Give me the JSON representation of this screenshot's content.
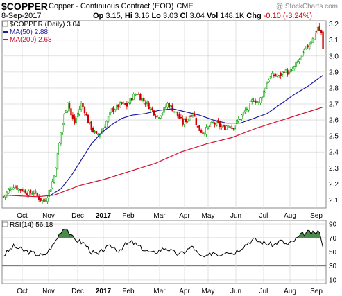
{
  "header": {
    "symbol": "$COPPER",
    "name": "Copper - Continuous Contract (EOD)",
    "exchange": "CME",
    "date": "8-Sep-2017",
    "open_label": "Op",
    "open": "3.15",
    "high_label": "Hi",
    "high": "3.16",
    "low_label": "Lo",
    "low": "3.03",
    "close_label": "Cl",
    "close": "3.04",
    "vol_label": "Vol",
    "vol": "148.1K",
    "chg_label": "Chg",
    "chg": "-0.10 (-3.24%)",
    "brand": "@ StockCharts.com"
  },
  "colors": {
    "price_up": "#00a000",
    "price_down": "#d00000",
    "ma50": "#1a1aa0",
    "ma200": "#d01030",
    "rsi_line": "#000000",
    "rsi_fill": "#4a8a4a",
    "grid": "#d9d9d9"
  },
  "chart_data": [
    {
      "type": "candlestick",
      "title": "$COPPER (Daily) 3.04",
      "legend": [
        {
          "label": "MA(50)",
          "value": "2.88",
          "color": "#1a1aa0"
        },
        {
          "label": "MA(200)",
          "value": "2.68",
          "color": "#d01030"
        }
      ],
      "x_labels": [
        "Oct",
        "Nov",
        "Dec",
        "2017",
        "Feb",
        "Mar",
        "Apr",
        "May",
        "Jun",
        "Jul",
        "Aug",
        "Sep"
      ],
      "y_ticks": [
        "2.1",
        "2.2",
        "2.3",
        "2.4",
        "2.5",
        "2.6",
        "2.7",
        "2.8",
        "2.9",
        "3.0",
        "3.1",
        "3.2"
      ],
      "ylim": [
        2.05,
        3.22
      ],
      "axis_side": "right",
      "grid": true,
      "price": [
        {
          "t": 0,
          "v": 2.12
        },
        {
          "t": 3,
          "v": 2.16
        },
        {
          "t": 6,
          "v": 2.19
        },
        {
          "t": 9,
          "v": 2.17
        },
        {
          "t": 12,
          "v": 2.16
        },
        {
          "t": 15,
          "v": 2.14
        },
        {
          "t": 18,
          "v": 2.15
        },
        {
          "t": 21,
          "v": 2.11
        },
        {
          "t": 24,
          "v": 2.09
        },
        {
          "t": 26,
          "v": 2.13
        },
        {
          "t": 28,
          "v": 2.18
        },
        {
          "t": 30,
          "v": 2.25
        },
        {
          "t": 32,
          "v": 2.38
        },
        {
          "t": 34,
          "v": 2.52
        },
        {
          "t": 36,
          "v": 2.63
        },
        {
          "t": 38,
          "v": 2.72
        },
        {
          "t": 40,
          "v": 2.63
        },
        {
          "t": 42,
          "v": 2.58
        },
        {
          "t": 44,
          "v": 2.64
        },
        {
          "t": 46,
          "v": 2.7
        },
        {
          "t": 48,
          "v": 2.66
        },
        {
          "t": 50,
          "v": 2.59
        },
        {
          "t": 52,
          "v": 2.55
        },
        {
          "t": 55,
          "v": 2.5
        },
        {
          "t": 58,
          "v": 2.53
        },
        {
          "t": 61,
          "v": 2.59
        },
        {
          "t": 64,
          "v": 2.66
        },
        {
          "t": 67,
          "v": 2.68
        },
        {
          "t": 70,
          "v": 2.7
        },
        {
          "t": 73,
          "v": 2.69
        },
        {
          "t": 76,
          "v": 2.74
        },
        {
          "t": 79,
          "v": 2.77
        },
        {
          "t": 82,
          "v": 2.73
        },
        {
          "t": 85,
          "v": 2.7
        },
        {
          "t": 88,
          "v": 2.66
        },
        {
          "t": 91,
          "v": 2.62
        },
        {
          "t": 94,
          "v": 2.65
        },
        {
          "t": 97,
          "v": 2.7
        },
        {
          "t": 100,
          "v": 2.67
        },
        {
          "t": 103,
          "v": 2.63
        },
        {
          "t": 106,
          "v": 2.58
        },
        {
          "t": 109,
          "v": 2.61
        },
        {
          "t": 112,
          "v": 2.65
        },
        {
          "t": 115,
          "v": 2.55
        },
        {
          "t": 118,
          "v": 2.52
        },
        {
          "t": 121,
          "v": 2.55
        },
        {
          "t": 124,
          "v": 2.58
        },
        {
          "t": 127,
          "v": 2.57
        },
        {
          "t": 130,
          "v": 2.55
        },
        {
          "t": 133,
          "v": 2.57
        },
        {
          "t": 136,
          "v": 2.56
        },
        {
          "t": 139,
          "v": 2.6
        },
        {
          "t": 142,
          "v": 2.64
        },
        {
          "t": 145,
          "v": 2.69
        },
        {
          "t": 148,
          "v": 2.73
        },
        {
          "t": 151,
          "v": 2.71
        },
        {
          "t": 154,
          "v": 2.78
        },
        {
          "t": 157,
          "v": 2.86
        },
        {
          "t": 160,
          "v": 2.88
        },
        {
          "t": 163,
          "v": 2.87
        },
        {
          "t": 166,
          "v": 2.91
        },
        {
          "t": 169,
          "v": 2.89
        },
        {
          "t": 172,
          "v": 2.93
        },
        {
          "t": 175,
          "v": 2.98
        },
        {
          "t": 178,
          "v": 3.03
        },
        {
          "t": 181,
          "v": 3.08
        },
        {
          "t": 184,
          "v": 3.14
        },
        {
          "t": 186,
          "v": 3.18
        },
        {
          "t": 188,
          "v": 3.14
        },
        {
          "t": 189,
          "v": 3.04
        }
      ],
      "series": [
        {
          "name": "MA(50)",
          "points": [
            {
              "t": 28,
              "v": 2.13
            },
            {
              "t": 34,
              "v": 2.17
            },
            {
              "t": 40,
              "v": 2.25
            },
            {
              "t": 46,
              "v": 2.35
            },
            {
              "t": 52,
              "v": 2.45
            },
            {
              "t": 58,
              "v": 2.52
            },
            {
              "t": 64,
              "v": 2.57
            },
            {
              "t": 70,
              "v": 2.61
            },
            {
              "t": 76,
              "v": 2.63
            },
            {
              "t": 84,
              "v": 2.64
            },
            {
              "t": 92,
              "v": 2.66
            },
            {
              "t": 100,
              "v": 2.67
            },
            {
              "t": 108,
              "v": 2.65
            },
            {
              "t": 116,
              "v": 2.63
            },
            {
              "t": 124,
              "v": 2.6
            },
            {
              "t": 132,
              "v": 2.58
            },
            {
              "t": 140,
              "v": 2.58
            },
            {
              "t": 148,
              "v": 2.61
            },
            {
              "t": 156,
              "v": 2.64
            },
            {
              "t": 164,
              "v": 2.7
            },
            {
              "t": 172,
              "v": 2.76
            },
            {
              "t": 180,
              "v": 2.81
            },
            {
              "t": 189,
              "v": 2.88
            }
          ]
        },
        {
          "name": "MA(200)",
          "points": [
            {
              "t": 0,
              "v": 2.13
            },
            {
              "t": 20,
              "v": 2.12
            },
            {
              "t": 30,
              "v": 2.13
            },
            {
              "t": 45,
              "v": 2.19
            },
            {
              "t": 60,
              "v": 2.23
            },
            {
              "t": 75,
              "v": 2.28
            },
            {
              "t": 90,
              "v": 2.33
            },
            {
              "t": 105,
              "v": 2.4
            },
            {
              "t": 120,
              "v": 2.45
            },
            {
              "t": 135,
              "v": 2.49
            },
            {
              "t": 150,
              "v": 2.55
            },
            {
              "t": 165,
              "v": 2.6
            },
            {
              "t": 180,
              "v": 2.65
            },
            {
              "t": 189,
              "v": 2.68
            }
          ]
        }
      ]
    },
    {
      "type": "line",
      "title": "RSI(14) 56.18",
      "x_labels": [
        "Oct",
        "Nov",
        "Dec",
        "2017",
        "Feb",
        "Mar",
        "Apr",
        "May",
        "Jun",
        "Jul",
        "Aug",
        "Sep"
      ],
      "y_ticks": [
        "10",
        "30",
        "50",
        "70",
        "90"
      ],
      "ylim": [
        5,
        95
      ],
      "levels": [
        30,
        50,
        70
      ],
      "values": [
        {
          "t": 0,
          "v": 45
        },
        {
          "t": 6,
          "v": 58
        },
        {
          "t": 12,
          "v": 52
        },
        {
          "t": 18,
          "v": 48
        },
        {
          "t": 24,
          "v": 44
        },
        {
          "t": 30,
          "v": 62
        },
        {
          "t": 34,
          "v": 80
        },
        {
          "t": 37,
          "v": 86
        },
        {
          "t": 40,
          "v": 72
        },
        {
          "t": 44,
          "v": 66
        },
        {
          "t": 48,
          "v": 62
        },
        {
          "t": 52,
          "v": 50
        },
        {
          "t": 56,
          "v": 46
        },
        {
          "t": 60,
          "v": 55
        },
        {
          "t": 64,
          "v": 58
        },
        {
          "t": 68,
          "v": 52
        },
        {
          "t": 72,
          "v": 60
        },
        {
          "t": 76,
          "v": 64
        },
        {
          "t": 80,
          "v": 58
        },
        {
          "t": 84,
          "v": 52
        },
        {
          "t": 88,
          "v": 48
        },
        {
          "t": 92,
          "v": 52
        },
        {
          "t": 96,
          "v": 56
        },
        {
          "t": 100,
          "v": 50
        },
        {
          "t": 104,
          "v": 46
        },
        {
          "t": 108,
          "v": 52
        },
        {
          "t": 112,
          "v": 58
        },
        {
          "t": 116,
          "v": 44
        },
        {
          "t": 120,
          "v": 42
        },
        {
          "t": 124,
          "v": 50
        },
        {
          "t": 128,
          "v": 46
        },
        {
          "t": 132,
          "v": 52
        },
        {
          "t": 136,
          "v": 48
        },
        {
          "t": 140,
          "v": 55
        },
        {
          "t": 144,
          "v": 62
        },
        {
          "t": 148,
          "v": 68
        },
        {
          "t": 152,
          "v": 64
        },
        {
          "t": 156,
          "v": 62
        },
        {
          "t": 160,
          "v": 60
        },
        {
          "t": 164,
          "v": 66
        },
        {
          "t": 168,
          "v": 60
        },
        {
          "t": 172,
          "v": 66
        },
        {
          "t": 176,
          "v": 74
        },
        {
          "t": 180,
          "v": 78
        },
        {
          "t": 184,
          "v": 76
        },
        {
          "t": 186,
          "v": 80
        },
        {
          "t": 188,
          "v": 70
        },
        {
          "t": 189,
          "v": 56
        }
      ]
    }
  ]
}
